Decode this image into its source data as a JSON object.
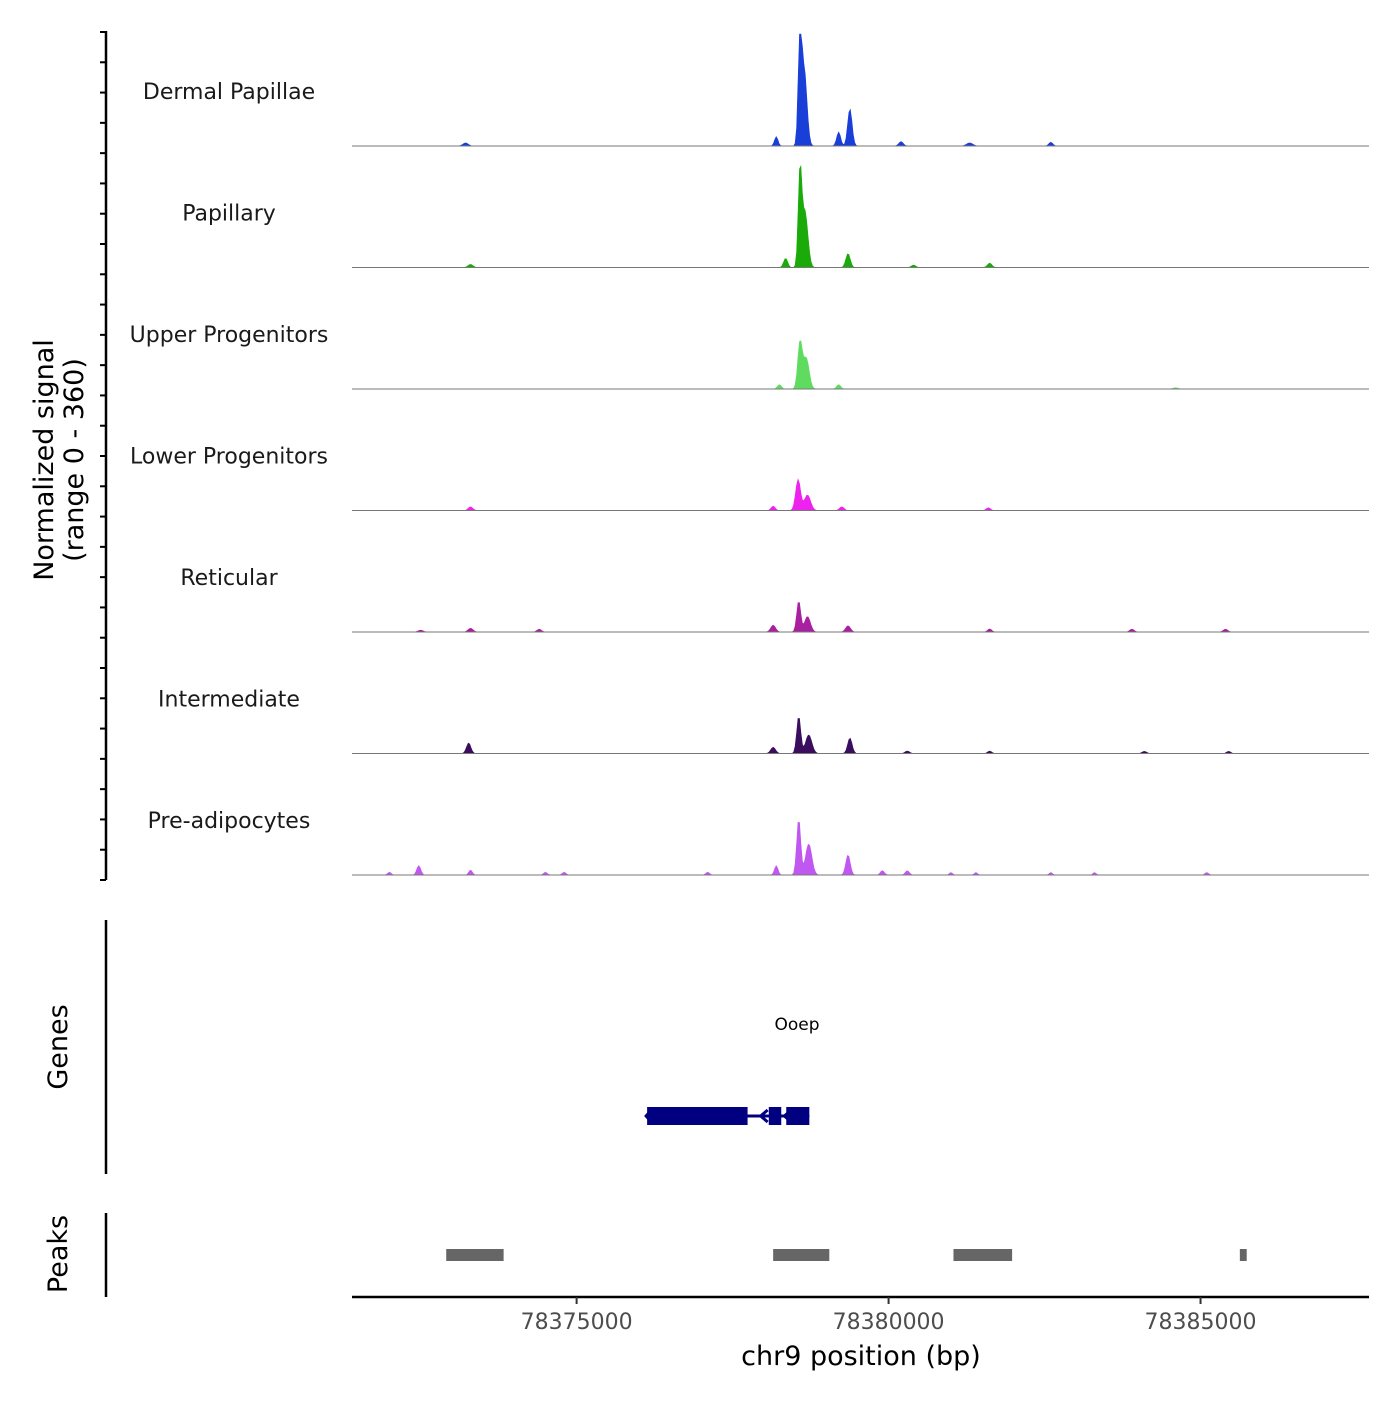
{
  "chart_data": {
    "type": "area",
    "title": "",
    "chromosome": "chr9",
    "xlabel": "chr9 position (bp)",
    "ylabel": "Normalized signal",
    "ylabel_range": "(range 0 - 360)",
    "xlim": [
      78371400,
      78387700
    ],
    "ylim": [
      0,
      360
    ],
    "x_ticks": [
      78375000,
      78380000,
      78385000
    ],
    "x_tick_labels": [
      "78375000",
      "78380000",
      "78385000"
    ],
    "series": [
      {
        "name": "Dermal Papillae",
        "color": "#1a3fd9",
        "peaks": [
          {
            "center": 78378580,
            "height": 350,
            "width": 80
          },
          {
            "center": 78378650,
            "height": 240,
            "width": 120
          },
          {
            "center": 78378200,
            "height": 30,
            "width": 80
          },
          {
            "center": 78379380,
            "height": 120,
            "width": 100
          },
          {
            "center": 78379200,
            "height": 45,
            "width": 90
          },
          {
            "center": 78373220,
            "height": 10,
            "width": 120
          },
          {
            "center": 78380200,
            "height": 14,
            "width": 100
          },
          {
            "center": 78381300,
            "height": 10,
            "width": 140
          },
          {
            "center": 78382600,
            "height": 12,
            "width": 90
          }
        ]
      },
      {
        "name": "Papillary",
        "color": "#1aab0a",
        "peaks": [
          {
            "center": 78378580,
            "height": 300,
            "width": 80
          },
          {
            "center": 78378660,
            "height": 180,
            "width": 130
          },
          {
            "center": 78378350,
            "height": 30,
            "width": 90
          },
          {
            "center": 78379350,
            "height": 45,
            "width": 100
          },
          {
            "center": 78373300,
            "height": 10,
            "width": 110
          },
          {
            "center": 78381620,
            "height": 14,
            "width": 100
          },
          {
            "center": 78380400,
            "height": 8,
            "width": 100
          }
        ]
      },
      {
        "name": "Upper Progenitors",
        "color": "#5fdc5f",
        "peaks": [
          {
            "center": 78378580,
            "height": 150,
            "width": 100
          },
          {
            "center": 78378680,
            "height": 100,
            "width": 130
          },
          {
            "center": 78378250,
            "height": 14,
            "width": 90
          },
          {
            "center": 78379200,
            "height": 14,
            "width": 90
          },
          {
            "center": 78384600,
            "height": 4,
            "width": 110
          }
        ]
      },
      {
        "name": "Lower Progenitors",
        "color": "#ee22ee",
        "peaks": [
          {
            "center": 78378550,
            "height": 100,
            "width": 110
          },
          {
            "center": 78378700,
            "height": 50,
            "width": 140
          },
          {
            "center": 78378150,
            "height": 14,
            "width": 90
          },
          {
            "center": 78379250,
            "height": 12,
            "width": 100
          },
          {
            "center": 78373300,
            "height": 12,
            "width": 100
          },
          {
            "center": 78381600,
            "height": 9,
            "width": 90
          }
        ]
      },
      {
        "name": "Reticular",
        "color": "#a81fa0",
        "peaks": [
          {
            "center": 78378560,
            "height": 100,
            "width": 90
          },
          {
            "center": 78378700,
            "height": 50,
            "width": 130
          },
          {
            "center": 78378150,
            "height": 22,
            "width": 110
          },
          {
            "center": 78379350,
            "height": 20,
            "width": 110
          },
          {
            "center": 78373300,
            "height": 12,
            "width": 110
          },
          {
            "center": 78374400,
            "height": 9,
            "width": 100
          },
          {
            "center": 78381620,
            "height": 10,
            "width": 90
          },
          {
            "center": 78383900,
            "height": 9,
            "width": 100
          },
          {
            "center": 78385400,
            "height": 9,
            "width": 100
          },
          {
            "center": 78372500,
            "height": 6,
            "width": 110
          }
        ]
      },
      {
        "name": "Intermediate",
        "color": "#3a0d5e",
        "peaks": [
          {
            "center": 78378560,
            "height": 120,
            "width": 90
          },
          {
            "center": 78378720,
            "height": 60,
            "width": 140
          },
          {
            "center": 78378150,
            "height": 20,
            "width": 110
          },
          {
            "center": 78379380,
            "height": 50,
            "width": 100
          },
          {
            "center": 78373270,
            "height": 34,
            "width": 100
          },
          {
            "center": 78380300,
            "height": 8,
            "width": 100
          },
          {
            "center": 78381620,
            "height": 8,
            "width": 90
          },
          {
            "center": 78384100,
            "height": 7,
            "width": 100
          },
          {
            "center": 78385450,
            "height": 7,
            "width": 90
          }
        ]
      },
      {
        "name": "Pre-adipocytes",
        "color": "#c057f0",
        "peaks": [
          {
            "center": 78378560,
            "height": 180,
            "width": 90
          },
          {
            "center": 78378720,
            "height": 100,
            "width": 140
          },
          {
            "center": 78378200,
            "height": 30,
            "width": 80
          },
          {
            "center": 78379350,
            "height": 65,
            "width": 100
          },
          {
            "center": 78372470,
            "height": 30,
            "width": 90
          },
          {
            "center": 78373300,
            "height": 16,
            "width": 80
          },
          {
            "center": 78372000,
            "height": 9,
            "width": 80
          },
          {
            "center": 78374500,
            "height": 9,
            "width": 80
          },
          {
            "center": 78374800,
            "height": 9,
            "width": 80
          },
          {
            "center": 78377100,
            "height": 9,
            "width": 80
          },
          {
            "center": 78379900,
            "height": 14,
            "width": 90
          },
          {
            "center": 78380300,
            "height": 14,
            "width": 90
          },
          {
            "center": 78381000,
            "height": 8,
            "width": 70
          },
          {
            "center": 78381400,
            "height": 8,
            "width": 70
          },
          {
            "center": 78382600,
            "height": 8,
            "width": 70
          },
          {
            "center": 78383300,
            "height": 8,
            "width": 70
          },
          {
            "center": 78385100,
            "height": 8,
            "width": 80
          }
        ]
      }
    ],
    "genes_track": {
      "label": "Genes",
      "gene_name": "Ooep",
      "color": "#000080",
      "strand": "-",
      "start": 78376130,
      "end": 78378730,
      "exons": [
        [
          78376130,
          78377740
        ],
        [
          78378080,
          78378280
        ],
        [
          78378360,
          78378730
        ]
      ]
    },
    "peaks_track": {
      "label": "Peaks",
      "color": "#666666",
      "regions": [
        [
          78372910,
          78373830
        ],
        [
          78378150,
          78379050
        ],
        [
          78381040,
          78381980
        ],
        [
          78385630,
          78385740
        ]
      ]
    }
  }
}
